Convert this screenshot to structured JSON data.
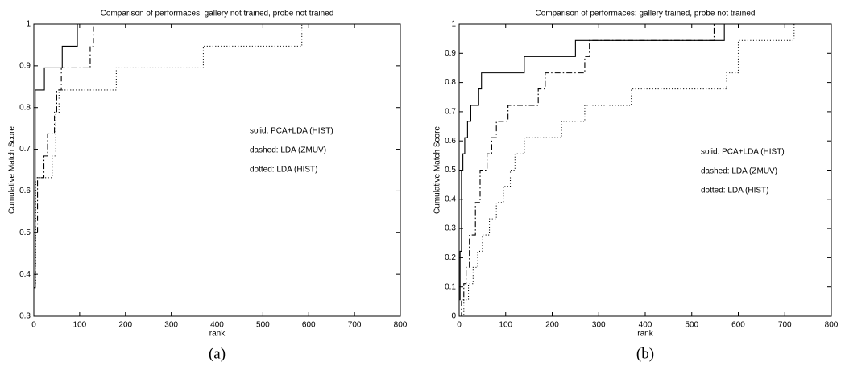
{
  "chart_data": [
    {
      "type": "line",
      "step": true,
      "title": "Comparison of performaces: gallery not trained, probe not trained",
      "x_label": "rank",
      "y_label": "Cumulative Match Score",
      "panel_label": "(a)",
      "xlim": [
        0,
        800
      ],
      "xticks": [
        0,
        100,
        200,
        300,
        400,
        500,
        600,
        700,
        800
      ],
      "ylim": [
        0.3,
        1
      ],
      "yticks": [
        0.3,
        0.4,
        0.5,
        0.6,
        0.7,
        0.8,
        0.9,
        1
      ],
      "series": [
        {
          "name": "solid: PCA+LDA (HIST)",
          "color": "#000000",
          "dash": "solid",
          "x": [
            1,
            3,
            23,
            62,
            95,
            740
          ],
          "values": [
            0.368,
            0.842,
            0.895,
            0.947,
            1.0,
            1.0
          ]
        },
        {
          "name": "dashed: LDA (ZMUV)",
          "color": "#000000",
          "dash": "dashdot",
          "x": [
            1,
            3,
            8,
            22,
            30,
            45,
            50,
            60,
            123,
            130,
            740
          ],
          "values": [
            0.368,
            0.5,
            0.632,
            0.684,
            0.737,
            0.789,
            0.842,
            0.895,
            0.947,
            1.0,
            1.0
          ]
        },
        {
          "name": "dotted: LDA (HIST)",
          "color": "#000000",
          "dash": "dotted",
          "x": [
            1,
            4,
            40,
            48,
            55,
            180,
            370,
            585,
            740
          ],
          "values": [
            0.368,
            0.632,
            0.684,
            0.789,
            0.842,
            0.895,
            0.947,
            1.0,
            1.0
          ]
        }
      ]
    },
    {
      "type": "line",
      "step": true,
      "title": "Comparison of performaces: gallery trained, probe not trained",
      "x_label": "rank",
      "y_label": "Cumulative Match Score",
      "panel_label": "(b)",
      "xlim": [
        0,
        800
      ],
      "xticks": [
        0,
        100,
        200,
        300,
        400,
        500,
        600,
        700,
        800
      ],
      "ylim": [
        0,
        1
      ],
      "yticks": [
        0,
        0.1,
        0.2,
        0.3,
        0.4,
        0.5,
        0.6,
        0.7,
        0.8,
        0.9,
        1
      ],
      "series": [
        {
          "name": "solid: PCA+LDA (HIST)",
          "color": "#000000",
          "dash": "solid",
          "x": [
            1,
            2,
            5,
            8,
            12,
            18,
            25,
            42,
            48,
            140,
            250,
            570,
            730
          ],
          "values": [
            0.056,
            0.222,
            0.5,
            0.556,
            0.611,
            0.667,
            0.722,
            0.778,
            0.833,
            0.889,
            0.944,
            1.0,
            1.0
          ]
        },
        {
          "name": "dashed: LDA (ZMUV)",
          "color": "#000000",
          "dash": "dashdot",
          "x": [
            1,
            5,
            10,
            15,
            22,
            35,
            45,
            60,
            70,
            80,
            105,
            170,
            185,
            270,
            280,
            548,
            730
          ],
          "values": [
            0.0,
            0.056,
            0.111,
            0.167,
            0.278,
            0.389,
            0.5,
            0.556,
            0.611,
            0.667,
            0.722,
            0.778,
            0.833,
            0.889,
            0.944,
            1.0,
            1.0
          ]
        },
        {
          "name": "dotted: LDA (HIST)",
          "color": "#000000",
          "dash": "dotted",
          "x": [
            1,
            10,
            20,
            30,
            40,
            50,
            65,
            80,
            95,
            110,
            120,
            140,
            220,
            270,
            370,
            575,
            600,
            720,
            730
          ],
          "values": [
            0.0,
            0.056,
            0.111,
            0.167,
            0.222,
            0.278,
            0.333,
            0.389,
            0.444,
            0.5,
            0.556,
            0.611,
            0.667,
            0.722,
            0.778,
            0.833,
            0.944,
            1.0,
            1.0
          ]
        }
      ]
    }
  ]
}
